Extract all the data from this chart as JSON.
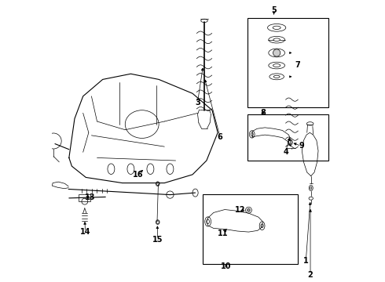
{
  "background_color": "#ffffff",
  "line_color": "#000000",
  "fig_width": 4.9,
  "fig_height": 3.6,
  "dpi": 100,
  "font_size_label": 7
}
